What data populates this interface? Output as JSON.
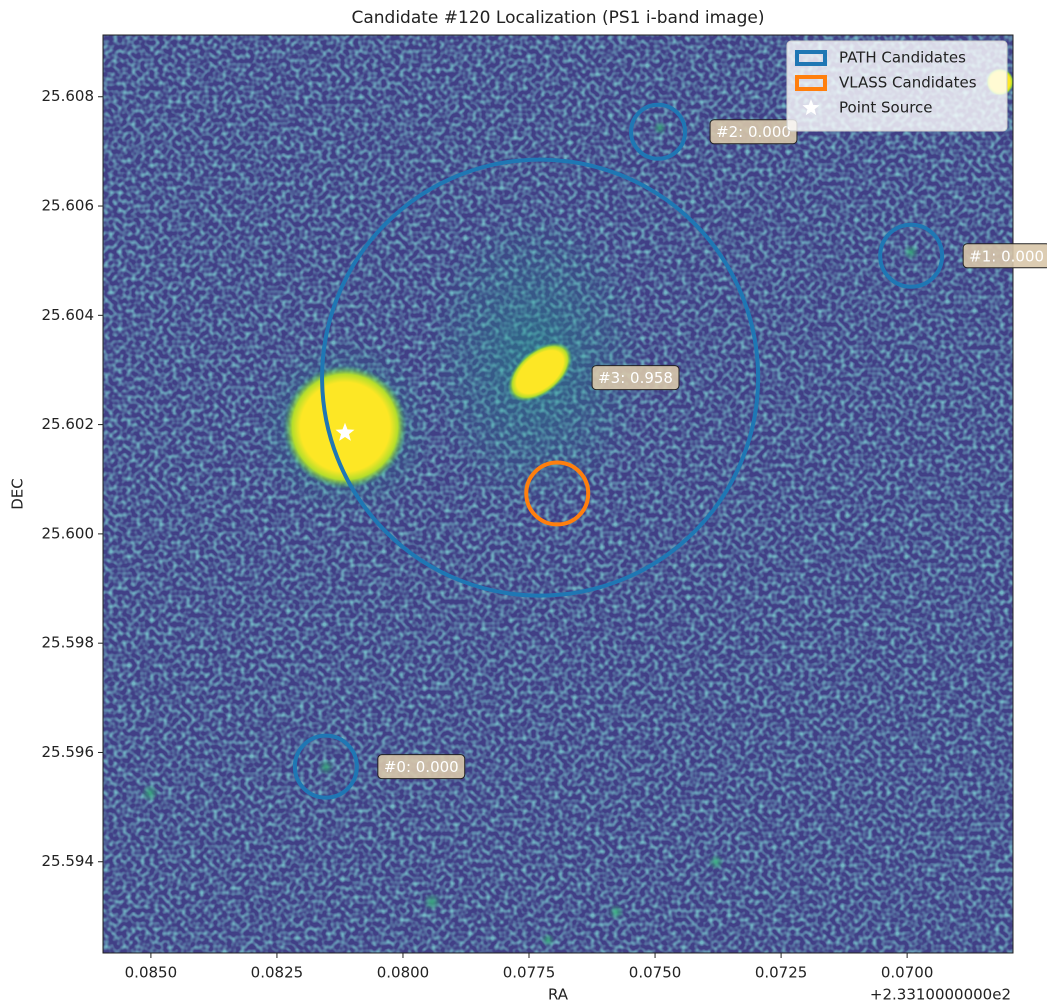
{
  "chart_data": {
    "type": "image",
    "title": "Candidate #120 Localization (PS1 i-band image)",
    "xlabel": "RA",
    "ylabel": "DEC",
    "x_offset_label": "+2.3310000000e2",
    "xlim": [
      0.08595,
      0.0679
    ],
    "ylim": [
      25.59233,
      25.60913
    ],
    "xticks": [
      {
        "value": 0.085,
        "label": "0.0850"
      },
      {
        "value": 0.0825,
        "label": "0.0825"
      },
      {
        "value": 0.08,
        "label": "0.0800"
      },
      {
        "value": 0.0775,
        "label": "0.0775"
      },
      {
        "value": 0.075,
        "label": "0.0750"
      },
      {
        "value": 0.0725,
        "label": "0.0725"
      },
      {
        "value": 0.07,
        "label": "0.0700"
      }
    ],
    "yticks": [
      {
        "value": 25.594,
        "label": "25.594"
      },
      {
        "value": 25.596,
        "label": "25.596"
      },
      {
        "value": 25.598,
        "label": "25.598"
      },
      {
        "value": 25.6,
        "label": "25.600"
      },
      {
        "value": 25.602,
        "label": "25.602"
      },
      {
        "value": 25.604,
        "label": "25.604"
      },
      {
        "value": 25.606,
        "label": "25.606"
      },
      {
        "value": 25.608,
        "label": "25.608"
      }
    ],
    "series": [
      {
        "name": "PATH Candidates",
        "color": "#1f77b4",
        "marker": "circle",
        "points": [
          {
            "label": "#0: 0.000",
            "ra": 0.08153,
            "dec": 25.59574,
            "radius": 0.000567
          },
          {
            "label": "#1: 0.000",
            "ra": 0.06992,
            "dec": 25.60509,
            "radius": 0.000567
          },
          {
            "label": "#2: 0.000",
            "ra": 0.07494,
            "dec": 25.60736,
            "radius": 0.000494
          },
          {
            "label": "#3: 0.958",
            "ra": 0.07728,
            "dec": 25.60286,
            "radius": 0.00399
          }
        ]
      },
      {
        "name": "VLASS Candidates",
        "color": "#ff7f0e",
        "marker": "circle",
        "points": [
          {
            "ra": 0.07694,
            "dec": 25.60074,
            "radius": 0.000567
          }
        ]
      },
      {
        "name": "Point Source",
        "color": "#ffffff",
        "marker": "star",
        "points": [
          {
            "ra": 0.08115,
            "dec": 25.60185
          }
        ]
      }
    ],
    "legend": "upper right"
  }
}
